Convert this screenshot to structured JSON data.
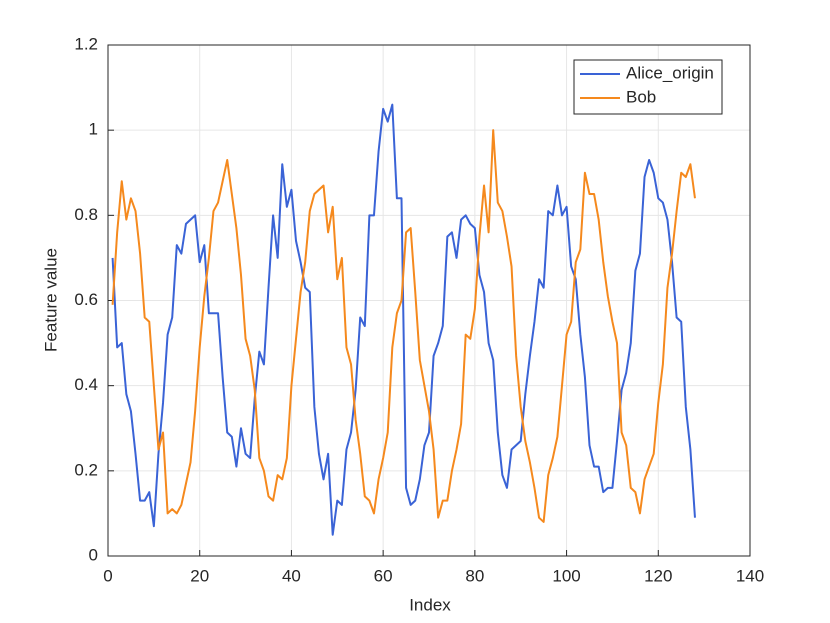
{
  "chart_data": {
    "type": "line",
    "x_label": "Index",
    "y_label": "Feature value",
    "x": [
      1,
      2,
      3,
      4,
      5,
      6,
      7,
      8,
      9,
      10,
      11,
      12,
      13,
      14,
      15,
      16,
      17,
      18,
      19,
      20,
      21,
      22,
      23,
      24,
      25,
      26,
      27,
      28,
      29,
      30,
      31,
      32,
      33,
      34,
      35,
      36,
      37,
      38,
      39,
      40,
      41,
      42,
      43,
      44,
      45,
      46,
      47,
      48,
      49,
      50,
      51,
      52,
      53,
      54,
      55,
      56,
      57,
      58,
      59,
      60,
      61,
      62,
      63,
      64,
      65,
      66,
      67,
      68,
      69,
      70,
      71,
      72,
      73,
      74,
      75,
      76,
      77,
      78,
      79,
      80,
      81,
      82,
      83,
      84,
      85,
      86,
      87,
      88,
      89,
      90,
      91,
      92,
      93,
      94,
      95,
      96,
      97,
      98,
      99,
      100,
      101,
      102,
      103,
      104,
      105,
      106,
      107,
      108,
      109,
      110,
      111,
      112,
      113,
      114,
      115,
      116,
      117,
      118,
      119,
      120,
      121,
      122,
      123,
      124,
      125,
      126,
      127,
      128
    ],
    "series": [
      {
        "name": "Alice_origin",
        "color": "#3a63d6",
        "values": [
          0.7,
          0.49,
          0.5,
          0.38,
          0.34,
          0.24,
          0.13,
          0.13,
          0.15,
          0.07,
          0.24,
          0.36,
          0.52,
          0.56,
          0.73,
          0.71,
          0.78,
          0.79,
          0.8,
          0.69,
          0.73,
          0.57,
          0.57,
          0.57,
          0.42,
          0.29,
          0.28,
          0.21,
          0.3,
          0.24,
          0.23,
          0.37,
          0.48,
          0.45,
          0.63,
          0.8,
          0.7,
          0.92,
          0.82,
          0.86,
          0.74,
          0.69,
          0.63,
          0.62,
          0.35,
          0.24,
          0.18,
          0.24,
          0.05,
          0.13,
          0.12,
          0.25,
          0.29,
          0.39,
          0.56,
          0.54,
          0.8,
          0.8,
          0.95,
          1.05,
          1.02,
          1.06,
          0.84,
          0.84,
          0.16,
          0.12,
          0.13,
          0.18,
          0.26,
          0.29,
          0.47,
          0.5,
          0.54,
          0.75,
          0.76,
          0.7,
          0.79,
          0.8,
          0.78,
          0.77,
          0.66,
          0.62,
          0.5,
          0.46,
          0.29,
          0.19,
          0.16,
          0.25,
          0.26,
          0.27,
          0.38,
          0.47,
          0.55,
          0.65,
          0.63,
          0.81,
          0.8,
          0.87,
          0.8,
          0.82,
          0.68,
          0.65,
          0.52,
          0.42,
          0.26,
          0.21,
          0.21,
          0.15,
          0.16,
          0.16,
          0.27,
          0.39,
          0.43,
          0.5,
          0.67,
          0.71,
          0.89,
          0.93,
          0.9,
          0.84,
          0.83,
          0.79,
          0.69,
          0.56,
          0.55,
          0.35,
          0.25,
          0.09
        ]
      },
      {
        "name": "Bob",
        "color": "#f5891d",
        "values": [
          0.59,
          0.76,
          0.88,
          0.79,
          0.84,
          0.81,
          0.71,
          0.56,
          0.55,
          0.4,
          0.25,
          0.29,
          0.1,
          0.11,
          0.1,
          0.12,
          0.17,
          0.22,
          0.34,
          0.49,
          0.61,
          0.7,
          0.81,
          0.83,
          0.88,
          0.93,
          0.85,
          0.77,
          0.66,
          0.51,
          0.47,
          0.39,
          0.23,
          0.2,
          0.14,
          0.13,
          0.19,
          0.18,
          0.23,
          0.4,
          0.51,
          0.62,
          0.69,
          0.81,
          0.85,
          0.86,
          0.87,
          0.76,
          0.82,
          0.65,
          0.7,
          0.49,
          0.45,
          0.32,
          0.24,
          0.14,
          0.13,
          0.1,
          0.18,
          0.23,
          0.29,
          0.49,
          0.57,
          0.6,
          0.76,
          0.77,
          0.62,
          0.46,
          0.4,
          0.34,
          0.25,
          0.09,
          0.13,
          0.13,
          0.2,
          0.25,
          0.31,
          0.52,
          0.51,
          0.58,
          0.75,
          0.87,
          0.76,
          1.0,
          0.83,
          0.81,
          0.75,
          0.68,
          0.47,
          0.35,
          0.27,
          0.22,
          0.16,
          0.09,
          0.08,
          0.19,
          0.23,
          0.28,
          0.4,
          0.52,
          0.55,
          0.69,
          0.72,
          0.9,
          0.85,
          0.85,
          0.79,
          0.69,
          0.61,
          0.55,
          0.5,
          0.29,
          0.26,
          0.16,
          0.15,
          0.1,
          0.18,
          0.21,
          0.24,
          0.36,
          0.45,
          0.63,
          0.71,
          0.81,
          0.9,
          0.89,
          0.92,
          0.84
        ]
      }
    ],
    "xlim": [
      0,
      140
    ],
    "xticks": [
      0,
      20,
      40,
      60,
      80,
      100,
      120,
      140
    ],
    "ylim": [
      0,
      1.2
    ],
    "yticks": [
      0,
      0.2,
      0.4,
      0.6,
      0.8,
      1,
      1.2
    ],
    "grid": true,
    "legend": "northeast"
  }
}
